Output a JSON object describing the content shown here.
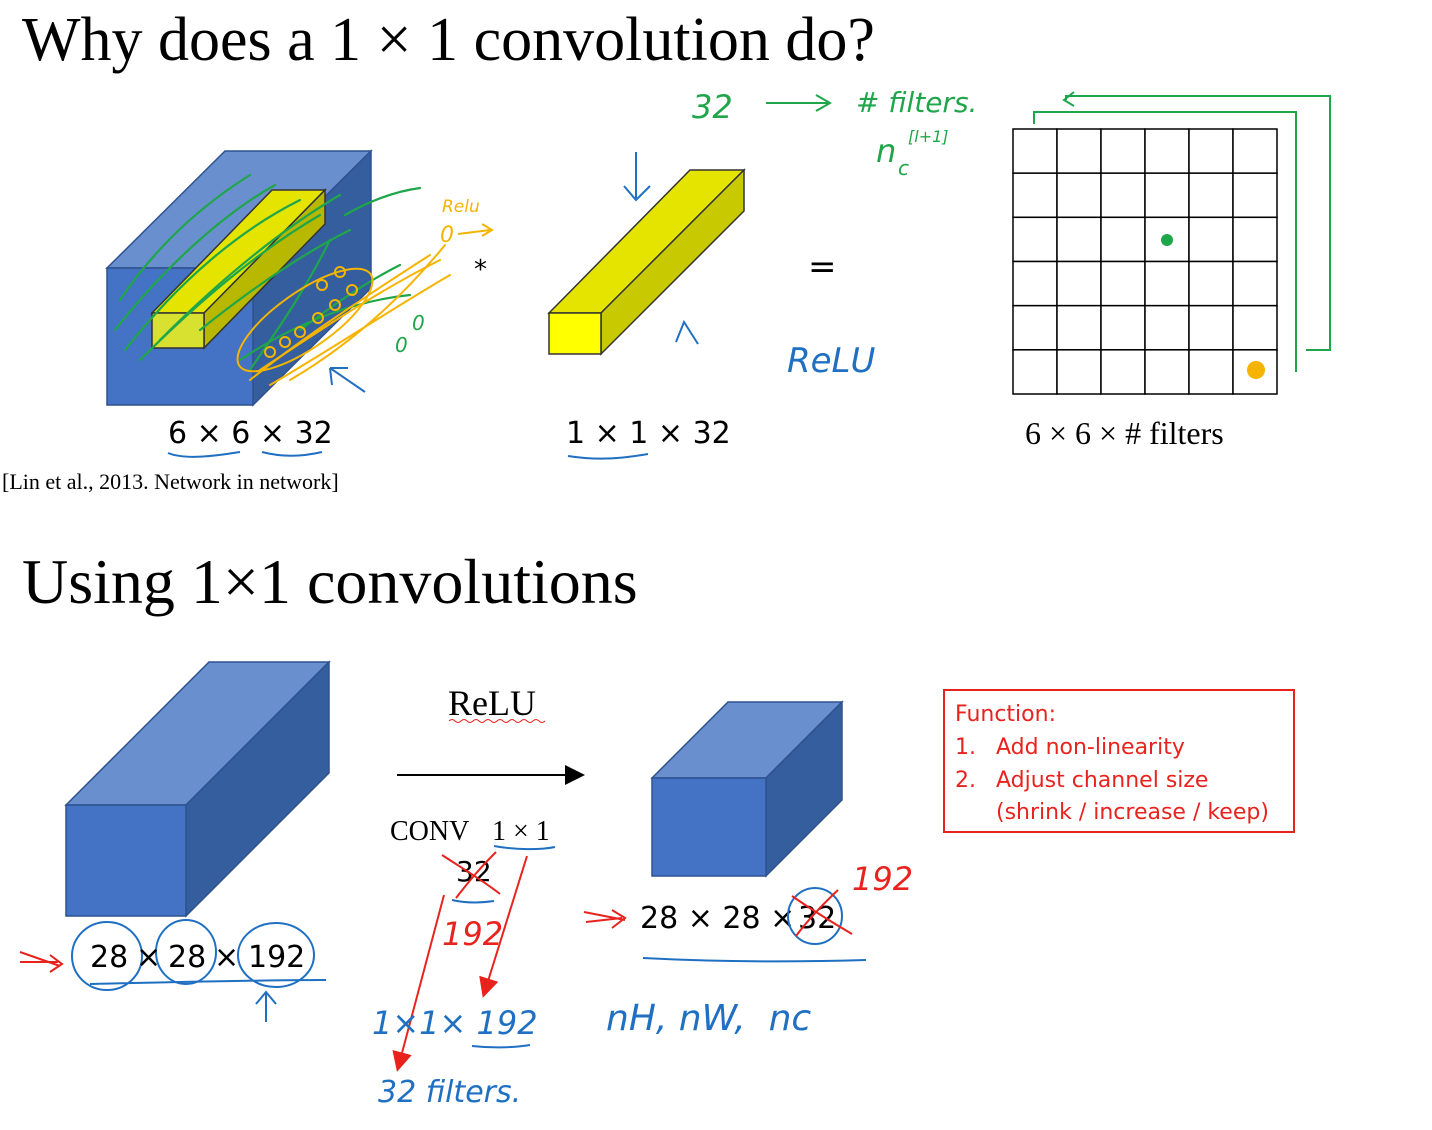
{
  "colors": {
    "cube_front": "#4472c4",
    "cube_top": "#6a8fce",
    "cube_side": "#345e9e",
    "filter_front": "#ffff00",
    "filter_top": "#e4e400",
    "filter_side": "#c9c900",
    "ink_green": "#1fa64a",
    "ink_blue": "#1f6fc2",
    "ink_red": "#e8231e",
    "ink_orange": "#f5b400",
    "function_text": "#e8231e",
    "function_border": "#e8231e"
  },
  "top": {
    "title": "Why does a 1 × 1 convolution do?",
    "input_label": "6 × 6 × 32",
    "filter_label": "1 × 1 × 32",
    "output_label": "6 × 6 × # filters",
    "conv_symbol": "*",
    "equals_symbol": "=",
    "citation": "[Lin et al., 2013. Network in network]",
    "output_grid": {
      "rows": 6,
      "cols": 6
    },
    "annotations": {
      "relu_small": "Relu",
      "relu_arrow_zero": "0",
      "zeros": [
        "0",
        "0"
      ],
      "filter_count": "32",
      "filters_note": "# filters.",
      "nc_symbol": "n",
      "nc_subscript": "c",
      "nc_superscript": "[l+1]",
      "relu_blue": "ReLU"
    }
  },
  "bottom": {
    "title": "Using 1×1 convolutions",
    "input_dims": [
      "28",
      "28",
      "192"
    ],
    "times": "×",
    "relu_label": "ReLU",
    "conv_label": "CONV",
    "conv_size": "1 × 1",
    "conv_filters_struck": "32",
    "output_label_prefix": "28 × 28 × ",
    "output_label_struck": "32",
    "annotations": {
      "red_192_conv": "192",
      "red_192_output": "192",
      "filter_dims": "1×1× 192",
      "filters_32": "32  filters.",
      "output_dims_note": "nH, nW,  nc"
    },
    "function_box": {
      "heading": "Function:",
      "items": [
        {
          "num": "1.",
          "text": "Add non-linearity"
        },
        {
          "num": "2.",
          "text": "Adjust channel size"
        }
      ],
      "note": "(shrink / increase / keep)"
    }
  }
}
